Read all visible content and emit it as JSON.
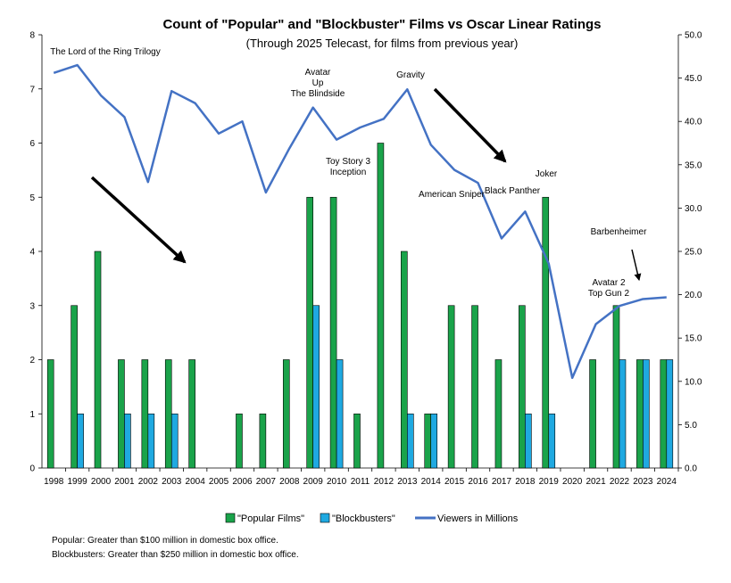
{
  "chart_data": {
    "type": "bar",
    "title": "Count of \"Popular\" and \"Blockbuster\" Films vs Oscar Linear Ratings",
    "subtitle": "(Through 2025 Telecast, for films from previous year)",
    "categories": [
      "1998",
      "1999",
      "2000",
      "2001",
      "2002",
      "2003",
      "2004",
      "2005",
      "2006",
      "2007",
      "2008",
      "2009",
      "2010",
      "2011",
      "2012",
      "2013",
      "2014",
      "2015",
      "2016",
      "2017",
      "2018",
      "2019",
      "2020",
      "2021",
      "2022",
      "2023",
      "2024"
    ],
    "series": [
      {
        "name": "\"Popular Films\"",
        "type": "bar",
        "axis": "left",
        "color": "#1aa34a",
        "values": [
          2,
          3,
          4,
          2,
          2,
          2,
          2,
          0,
          1,
          1,
          2,
          5,
          5,
          1,
          6,
          4,
          1,
          3,
          3,
          2,
          3,
          5,
          0,
          2,
          3,
          2,
          2
        ]
      },
      {
        "name": "\"Blockbusters\"",
        "type": "bar",
        "axis": "left",
        "color": "#1fa9e1",
        "values": [
          0,
          1,
          0,
          1,
          1,
          1,
          0,
          0,
          0,
          0,
          0,
          3,
          2,
          0,
          0,
          1,
          1,
          0,
          0,
          0,
          1,
          1,
          0,
          0,
          2,
          2,
          2
        ]
      },
      {
        "name": "Viewers in Millions",
        "type": "line",
        "axis": "right",
        "color": "#4472c4",
        "values": [
          45.6,
          46.5,
          43.0,
          40.5,
          33.0,
          43.5,
          42.1,
          38.6,
          40.0,
          31.8,
          36.9,
          41.6,
          37.9,
          39.3,
          40.3,
          43.7,
          37.3,
          34.4,
          32.9,
          26.5,
          29.6,
          23.6,
          10.4,
          16.6,
          18.7,
          19.5,
          19.7
        ]
      }
    ],
    "ylim_left": [
      0,
      8
    ],
    "yticks_left": [
      "0",
      "1",
      "2",
      "3",
      "4",
      "5",
      "6",
      "7",
      "8"
    ],
    "ylim_right": [
      0,
      50
    ],
    "yticks_right": [
      "0.0",
      "5.0",
      "10.0",
      "15.0",
      "20.0",
      "25.0",
      "30.0",
      "35.0",
      "40.0",
      "45.0",
      "50.0"
    ],
    "annotations": [
      {
        "lines": [
          "The Lord of the Ring Trilogy"
        ],
        "year": "1999"
      },
      {
        "lines": [
          "Avatar",
          "Up",
          "The Blindside"
        ],
        "year": "2009"
      },
      {
        "lines": [
          "Toy Story 3",
          "Inception"
        ],
        "year": "2010"
      },
      {
        "lines": [
          "Gravity"
        ],
        "year": "2013"
      },
      {
        "lines": [
          "American Sniper"
        ],
        "year": "2015"
      },
      {
        "lines": [
          "Black Panther"
        ],
        "year": "2017"
      },
      {
        "lines": [
          "Joker"
        ],
        "year": "2019"
      },
      {
        "lines": [
          "Barbenheimer"
        ],
        "year": "2023"
      },
      {
        "lines": [
          "Avatar 2",
          "Top Gun 2"
        ],
        "year": "2022"
      }
    ],
    "legend_position": "bottom",
    "grid": false
  },
  "notes": [
    "Popular: Greater than $100 million in domestic box office.",
    "Blockbusters: Greater than $250 million in domestic box office."
  ]
}
